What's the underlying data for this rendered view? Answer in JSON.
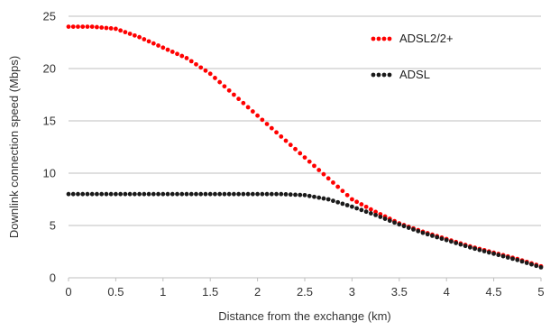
{
  "chart_data": {
    "type": "scatter",
    "xlabel": "Distance from the exchange (km)",
    "ylabel": "Downlink connection speed (Mbps)",
    "xlim": [
      0,
      5
    ],
    "ylim": [
      0,
      25
    ],
    "xticks": [
      "0",
      "0.5",
      "1",
      "1.5",
      "2",
      "2.5",
      "3",
      "3.5",
      "4",
      "4.5",
      "5"
    ],
    "yticks": [
      "0",
      "5",
      "10",
      "15",
      "20",
      "25"
    ],
    "grid": "horizontal",
    "legend_position": "top-right",
    "series": [
      {
        "name": "ADSL2/2+",
        "color": "#ff0000",
        "points": [
          [
            0,
            24
          ],
          [
            0.25,
            24
          ],
          [
            0.5,
            23.8
          ],
          [
            0.75,
            23
          ],
          [
            1,
            22
          ],
          [
            1.25,
            21
          ],
          [
            1.5,
            19.5
          ],
          [
            1.75,
            17.5
          ],
          [
            2,
            15.5
          ],
          [
            2.25,
            13.5
          ],
          [
            2.5,
            11.5
          ],
          [
            2.75,
            9.5
          ],
          [
            3,
            7.5
          ],
          [
            3.25,
            6.3
          ],
          [
            3.5,
            5.2
          ],
          [
            3.75,
            4.4
          ],
          [
            4,
            3.7
          ],
          [
            4.25,
            3
          ],
          [
            4.5,
            2.4
          ],
          [
            4.75,
            1.8
          ],
          [
            5,
            1.1
          ]
        ]
      },
      {
        "name": "ADSL",
        "color": "#1a1a1a",
        "points": [
          [
            0,
            8
          ],
          [
            0.25,
            8
          ],
          [
            0.5,
            8
          ],
          [
            0.75,
            8
          ],
          [
            1,
            8
          ],
          [
            1.25,
            8
          ],
          [
            1.5,
            8
          ],
          [
            1.75,
            8
          ],
          [
            2,
            8
          ],
          [
            2.25,
            8
          ],
          [
            2.5,
            7.9
          ],
          [
            2.75,
            7.5
          ],
          [
            3,
            6.8
          ],
          [
            3.25,
            6
          ],
          [
            3.5,
            5.1
          ],
          [
            3.75,
            4.3
          ],
          [
            4,
            3.6
          ],
          [
            4.25,
            2.9
          ],
          [
            4.5,
            2.3
          ],
          [
            4.75,
            1.7
          ],
          [
            5,
            1
          ]
        ]
      }
    ]
  }
}
